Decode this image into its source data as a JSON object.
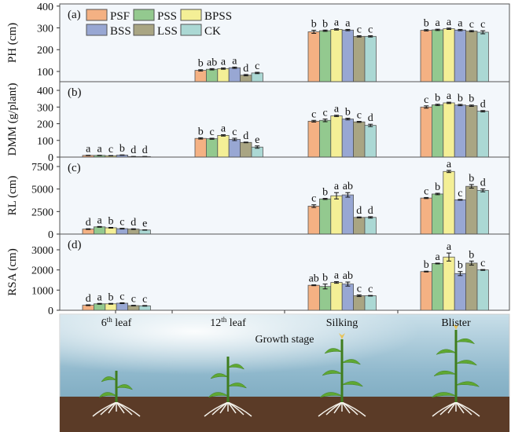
{
  "chart_data": {
    "type": "bar",
    "categories": [
      "6th leaf",
      "12th leaf",
      "Silking",
      "Blister"
    ],
    "category_labels": [
      {
        "base": "6",
        "sup": "th",
        "rest": " leaf"
      },
      {
        "base": "12",
        "sup": "th",
        "rest": " leaf"
      },
      {
        "base": "Silking",
        "sup": "",
        "rest": ""
      },
      {
        "base": "Blister",
        "sup": "",
        "rest": ""
      }
    ],
    "xlabel": "Growth stage",
    "legend": {
      "placement": "top-left",
      "entries": [
        {
          "name": "PSF",
          "color": "#f4b183"
        },
        {
          "name": "PSS",
          "color": "#93c98f"
        },
        {
          "name": "BPSS",
          "color": "#f4ef96"
        },
        {
          "name": "BSS",
          "color": "#98a7d3"
        },
        {
          "name": "LSS",
          "color": "#a9a583"
        },
        {
          "name": "CK",
          "color": "#abd8d4"
        }
      ]
    },
    "panels": [
      {
        "tag": "(a)",
        "ylabel": "PH (cm)",
        "ylim": [
          53,
          410
        ],
        "yticks": [
          100,
          200,
          300,
          400
        ],
        "values": [
          [
            null,
            null,
            null,
            null,
            null,
            null
          ],
          [
            105,
            110,
            113,
            117,
            83,
            93
          ],
          [
            282,
            287,
            293,
            290,
            261,
            261
          ],
          [
            289,
            291,
            296,
            290,
            285,
            280
          ]
        ],
        "errors": [
          [
            0,
            0,
            0,
            0,
            0,
            0
          ],
          [
            3,
            3,
            3,
            3,
            3,
            3
          ],
          [
            7,
            3,
            3,
            3,
            3,
            3
          ],
          [
            3,
            3,
            3,
            3,
            3,
            7
          ]
        ],
        "letters": [
          [
            "",
            "",
            "",
            "",
            "",
            ""
          ],
          [
            "b",
            "ab",
            "a",
            "a",
            "d",
            "c"
          ],
          [
            "b",
            "b",
            "a",
            "a",
            "c",
            "c"
          ],
          [
            "b",
            "a",
            "a",
            "a",
            "c",
            "c"
          ]
        ]
      },
      {
        "tag": "(b)",
        "ylabel": "DMM (g/plant)",
        "ylim": [
          0,
          452
        ],
        "yticks": [
          0,
          100,
          200,
          300,
          400
        ],
        "values": [
          [
            10,
            10,
            8,
            12,
            3,
            3
          ],
          [
            112,
            110,
            130,
            106,
            88,
            60
          ],
          [
            215,
            220,
            247,
            228,
            211,
            190
          ],
          [
            300,
            313,
            325,
            312,
            308,
            275
          ]
        ],
        "errors": [
          [
            1,
            1,
            1,
            1,
            1,
            1
          ],
          [
            4,
            3,
            4,
            7,
            2,
            7
          ],
          [
            5,
            8,
            4,
            5,
            3,
            7
          ],
          [
            7,
            4,
            4,
            4,
            4,
            4
          ]
        ],
        "letters": [
          [
            "a",
            "a",
            "c",
            "b",
            "d",
            "d"
          ],
          [
            "b",
            "c",
            "a",
            "c",
            "d",
            "e"
          ],
          [
            "c",
            "c",
            "a",
            "b",
            "c",
            "d"
          ],
          [
            "c",
            "b",
            "a",
            "b",
            "b",
            "d"
          ]
        ]
      },
      {
        "tag": "(c)",
        "ylabel": "RL (cm)",
        "ylim": [
          0,
          8545
        ],
        "yticks": [
          0,
          2500,
          5000,
          7500
        ],
        "values": [
          [
            550,
            800,
            700,
            600,
            550,
            450
          ],
          [
            null,
            null,
            null,
            null,
            null,
            null
          ],
          [
            3100,
            3900,
            4250,
            4350,
            1850,
            1850
          ],
          [
            4000,
            4450,
            6950,
            3800,
            5300,
            4850
          ]
        ],
        "errors": [
          [
            40,
            40,
            40,
            40,
            40,
            20
          ],
          [
            0,
            0,
            0,
            0,
            0,
            0
          ],
          [
            150,
            60,
            350,
            250,
            50,
            80
          ],
          [
            60,
            80,
            120,
            40,
            200,
            160
          ]
        ],
        "letters": [
          [
            "d",
            "a",
            "b",
            "c",
            "d",
            "e"
          ],
          [
            "",
            "",
            "",
            "",
            "",
            ""
          ],
          [
            "c",
            "b",
            "a",
            "ab",
            "d",
            "d"
          ],
          [
            "c",
            "b",
            "a",
            "c",
            "b",
            "d"
          ]
        ]
      },
      {
        "tag": "(d)",
        "ylabel": "RSA (cm)",
        "ylim": [
          0,
          3780
        ],
        "yticks": [
          0,
          1000,
          2000,
          3000
        ],
        "values": [
          [
            250,
            320,
            320,
            350,
            230,
            220
          ],
          [
            null,
            null,
            null,
            null,
            null,
            null
          ],
          [
            1240,
            1180,
            1380,
            1300,
            720,
            720
          ],
          [
            1920,
            2320,
            2640,
            1820,
            2340,
            2000
          ]
        ],
        "errors": [
          [
            20,
            20,
            20,
            20,
            15,
            15
          ],
          [
            0,
            0,
            0,
            0,
            0,
            0
          ],
          [
            20,
            120,
            40,
            100,
            40,
            15
          ],
          [
            20,
            20,
            200,
            100,
            100,
            20
          ]
        ],
        "letters": [
          [
            "d",
            "a",
            "b",
            "c",
            "c",
            "c"
          ],
          [
            "",
            "",
            "",
            "",
            "",
            ""
          ],
          [
            "ab",
            "b",
            "a",
            "ab",
            "c",
            "c"
          ],
          [
            "b",
            "a",
            "a",
            "b",
            "b",
            "c"
          ]
        ]
      }
    ]
  }
}
